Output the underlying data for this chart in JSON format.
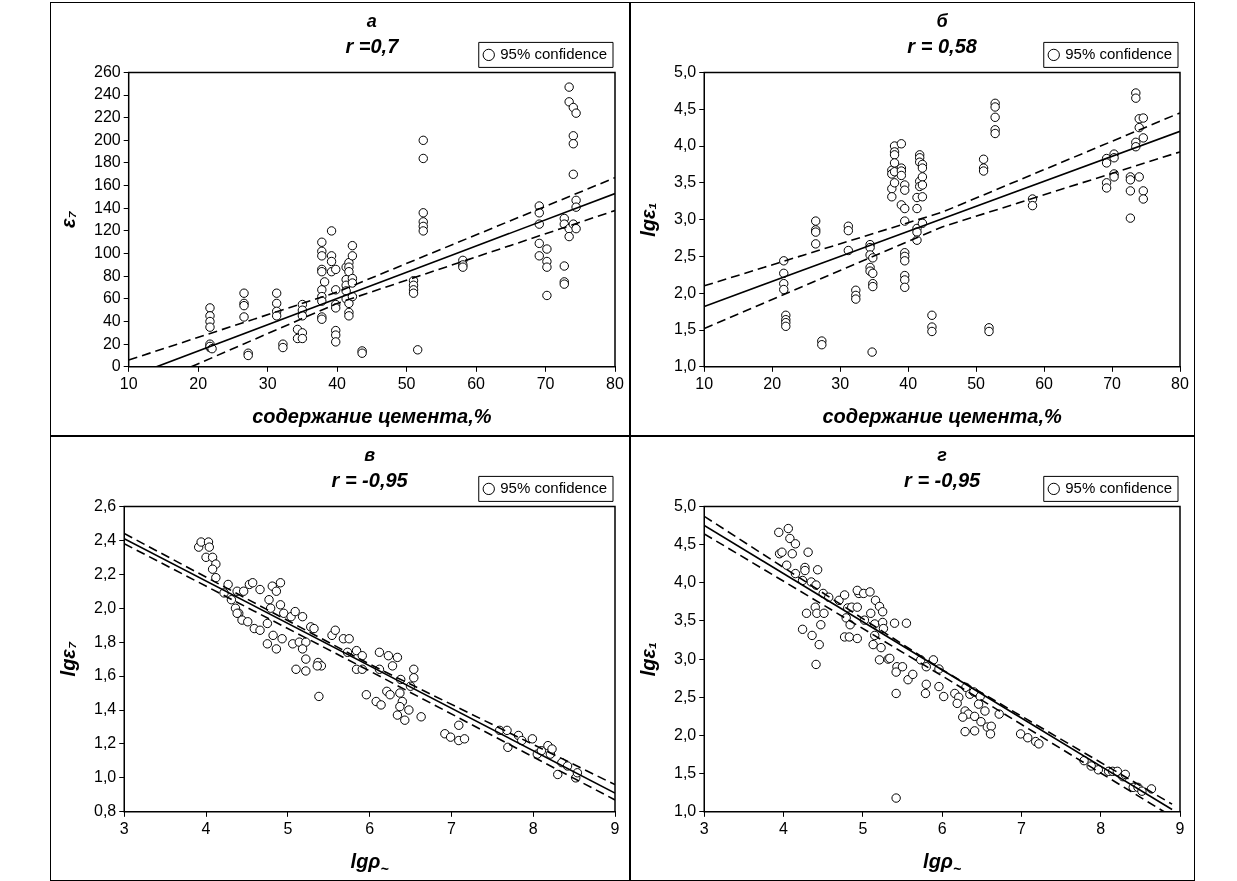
{
  "chart_data": [
    {
      "type": "scatter",
      "title": "а",
      "subtitle": "r =0,7",
      "xlabel": "содержание цемента,%",
      "ylabel": "ε₇",
      "legend": "top right",
      "grid": false,
      "xlim": [
        10,
        80
      ],
      "xticks": [
        10,
        20,
        30,
        40,
        50,
        60,
        70,
        80
      ],
      "ylim": [
        0,
        260
      ],
      "yticks": [
        0,
        20,
        40,
        60,
        80,
        100,
        120,
        140,
        160,
        180,
        200,
        220,
        240,
        260
      ],
      "series": [
        {
          "name": "95% confidence",
          "type": "scatter",
          "marker": "circle",
          "color": "#000000",
          "x": [
            21.7,
            21.7,
            21.7,
            21.7,
            21.7,
            21.7,
            21.7,
            22,
            26.6,
            26.6,
            26.6,
            26.6,
            27.2,
            27.2,
            31.3,
            31.3,
            31.3,
            31.3,
            32.2,
            32.2,
            34.3,
            34.3,
            35,
            35,
            35,
            35,
            35,
            37.8,
            37.8,
            37.8,
            37.8,
            37.8,
            37.8,
            37.8,
            37.8,
            37.8,
            37.8,
            38.2,
            39.2,
            39.2,
            39.2,
            39.2,
            39.8,
            39.8,
            39.8,
            39.8,
            39.8,
            39.8,
            39.8,
            41.3,
            41.3,
            41.3,
            41.3,
            41.3,
            41.7,
            41.7,
            41.7,
            41.7,
            41.7,
            41.7,
            42.2,
            42.2,
            42.2,
            42.2,
            42.2,
            43.6,
            43.6,
            51,
            51,
            51,
            51,
            51.6,
            52.4,
            52.4,
            52.4,
            52.4,
            52.4,
            52.4,
            58.1,
            58.1,
            58.1,
            69.1,
            69.1,
            69.1,
            69.1,
            69.1,
            70.2,
            70.2,
            70.2,
            70.2,
            72.7,
            72.7,
            72.7,
            72.7,
            72.7,
            73.4,
            73.4,
            73.4,
            73.4,
            74,
            74,
            74,
            74,
            74,
            74.4,
            74.4,
            74.4,
            74.4
          ],
          "values": [
            52,
            45,
            40,
            35,
            20,
            17,
            18,
            16,
            65,
            56,
            54,
            44,
            12,
            10,
            65,
            56,
            49,
            45,
            20,
            17,
            33,
            25,
            55,
            50,
            45,
            30,
            25,
            110,
            102,
            98,
            86,
            84,
            68,
            62,
            58,
            44,
            42,
            75,
            120,
            98,
            93,
            84,
            86,
            68,
            55,
            52,
            32,
            28,
            22,
            88,
            77,
            72,
            67,
            60,
            92,
            88,
            84,
            56,
            48,
            45,
            107,
            98,
            78,
            74,
            62,
            14,
            12,
            76,
            72,
            68,
            65,
            15,
            200,
            184,
            136,
            128,
            124,
            120,
            94,
            90,
            88,
            142,
            136,
            126,
            109,
            98,
            104,
            93,
            88,
            63,
            131,
            126,
            89,
            75,
            73,
            247,
            234,
            122,
            115,
            229,
            204,
            197,
            170,
            126,
            224,
            147,
            141,
            122
          ]
        },
        {
          "type": "line",
          "line_style": "solid",
          "color": "#000000",
          "x": [
            14,
            80
          ],
          "values": [
            0,
            153
          ]
        },
        {
          "type": "line",
          "line_style": "dashed",
          "color": "#000000",
          "x": [
            10,
            40,
            80
          ],
          "values": [
            6,
            66,
            167
          ]
        },
        {
          "type": "line",
          "line_style": "dashed",
          "color": "#000000",
          "x": [
            19,
            40,
            80
          ],
          "values": [
            0,
            56,
            138
          ]
        }
      ]
    },
    {
      "type": "scatter",
      "title": "б",
      "subtitle": "r = 0,58",
      "xlabel": "содержание цемента,%",
      "ylabel": "lgε₁",
      "legend": "top right",
      "grid": false,
      "xlim": [
        10,
        80
      ],
      "xticks": [
        10,
        20,
        30,
        40,
        50,
        60,
        70,
        80
      ],
      "ylim": [
        1,
        5
      ],
      "yticks": [
        {
          "value": 1,
          "label": "1,0"
        },
        {
          "value": 1.5,
          "label": "1,5"
        },
        {
          "value": 2,
          "label": "2,0"
        },
        {
          "value": 2.5,
          "label": "2,5"
        },
        {
          "value": 3,
          "label": "3,0"
        },
        {
          "value": 3.5,
          "label": "3,5"
        },
        {
          "value": 4,
          "label": "4,0"
        },
        {
          "value": 4.5,
          "label": "4,5"
        },
        {
          "value": 5,
          "label": "5,0"
        }
      ],
      "series": [
        {
          "name": "95% confidence",
          "type": "scatter",
          "marker": "circle",
          "color": "#000000",
          "x": [
            21.7,
            21.7,
            21.7,
            21.7,
            22,
            22,
            22,
            22,
            26.4,
            26.4,
            26.4,
            26.4,
            27.3,
            27.3,
            31.2,
            31.2,
            31.2,
            32.3,
            32.3,
            32.3,
            34.4,
            34.4,
            34.4,
            34.4,
            34.4,
            34.8,
            34.8,
            34.8,
            34.8,
            34.7,
            37.6,
            37.6,
            37.6,
            37.6,
            38,
            38,
            38,
            38,
            38,
            38,
            39,
            39,
            39,
            39,
            39,
            39.5,
            39.5,
            39.5,
            39.5,
            39.5,
            39.5,
            39.5,
            39.5,
            39.5,
            39.5,
            41.3,
            41.3,
            41.3,
            41.3,
            41.3,
            41.7,
            41.7,
            41.7,
            41.7,
            41.7,
            42.1,
            42.1,
            42.1,
            42.1,
            42.1,
            42.1,
            43.5,
            43.5,
            43.5,
            51.1,
            51.1,
            51.1,
            51.9,
            51.9,
            52.8,
            52.8,
            52.8,
            52.8,
            52.8,
            58.3,
            58.3,
            69.2,
            69.2,
            69.2,
            69.2,
            70.3,
            70.3,
            70.3,
            70.3,
            72.7,
            72.7,
            72.7,
            72.7,
            73.5,
            73.5,
            73.5,
            73.5,
            74,
            74,
            74,
            74.6,
            74.6,
            74.6,
            74.6
          ],
          "values": [
            2.44,
            2.27,
            2.13,
            2.05,
            1.7,
            1.64,
            1.6,
            1.55,
            2.98,
            2.86,
            2.83,
            2.67,
            1.35,
            1.3,
            2.91,
            2.85,
            2.58,
            2.04,
            1.97,
            1.92,
            2.66,
            2.62,
            2.52,
            2.35,
            2.3,
            2.48,
            2.27,
            2.13,
            2.09,
            1.2,
            3.67,
            3.62,
            3.42,
            3.31,
            4,
            3.92,
            3.88,
            3.77,
            3.65,
            3.5,
            4.03,
            3.7,
            3.66,
            3.6,
            3.2,
            3.47,
            3.4,
            3.15,
            2.98,
            2.55,
            2.5,
            2.44,
            2.24,
            2.18,
            2.08,
            3.3,
            3.15,
            2.88,
            2.83,
            2.72,
            3.88,
            3.84,
            3.78,
            3.52,
            3.45,
            3.75,
            3.7,
            3.58,
            3.47,
            3.31,
            2.95,
            1.7,
            1.54,
            1.48,
            3.82,
            3.7,
            3.66,
            1.53,
            1.48,
            4.58,
            4.53,
            4.39,
            4.22,
            4.17,
            3.28,
            3.19,
            3.83,
            3.77,
            3.5,
            3.43,
            3.89,
            3.84,
            3.62,
            3.58,
            3.58,
            3.54,
            3.39,
            3.02,
            4.72,
            4.65,
            4.05,
            3.99,
            4.37,
            4.25,
            3.58,
            4.38,
            4.11,
            3.39,
            3.28
          ]
        },
        {
          "type": "line",
          "line_style": "solid",
          "color": "#000000",
          "x": [
            10,
            80
          ],
          "values": [
            1.82,
            4.2
          ]
        },
        {
          "type": "line",
          "line_style": "dashed",
          "color": "#000000",
          "x": [
            10,
            45,
            80
          ],
          "values": [
            2.1,
            3.1,
            4.45
          ]
        },
        {
          "type": "line",
          "line_style": "dashed",
          "color": "#000000",
          "x": [
            10,
            45,
            80
          ],
          "values": [
            1.52,
            2.9,
            3.92
          ]
        }
      ]
    },
    {
      "type": "scatter",
      "title": "в",
      "subtitle": "r = -0,95",
      "xlabel": "lgρ$_{~}$",
      "ylabel": "lgε₇",
      "legend": "top right",
      "grid": false,
      "xlim": [
        3,
        9
      ],
      "xticks": [
        3,
        4,
        5,
        6,
        7,
        8,
        9
      ],
      "ylim": [
        0.8,
        2.6
      ],
      "yticks": [
        {
          "value": 0.8,
          "label": "0,8"
        },
        {
          "value": 1,
          "label": "1,0"
        },
        {
          "value": 1.2,
          "label": "1,2"
        },
        {
          "value": 1.4,
          "label": "1,4"
        },
        {
          "value": 1.6,
          "label": "1,6"
        },
        {
          "value": 1.8,
          "label": "1,8"
        },
        {
          "value": 2,
          "label": "2,0"
        },
        {
          "value": 2.2,
          "label": "2,2"
        },
        {
          "value": 2.4,
          "label": "2,4"
        },
        {
          "value": 2.6,
          "label": "2,6"
        }
      ],
      "series": [
        {
          "name": "95% confidence",
          "type": "scatter",
          "marker": "circle",
          "color": "#000000",
          "x": [
            3.91,
            3.94,
            4.03,
            4.04,
            4,
            4.08,
            4.12,
            4.08,
            4.12,
            4.27,
            4.22,
            4.38,
            4.46,
            4.53,
            4.57,
            4.66,
            4.81,
            4.91,
            4.86,
            4.31,
            4.36,
            4.4,
            4.38,
            4.44,
            4.51,
            4.59,
            4.66,
            4.77,
            4.79,
            4.91,
            4.75,
            4.82,
            4.75,
            4.86,
            4.93,
            4.95,
            5.04,
            5.09,
            5.18,
            5.06,
            5.14,
            5.22,
            5.18,
            5.1,
            5.22,
            5.22,
            5.28,
            5.32,
            5.37,
            5.41,
            5.36,
            5.38,
            5.54,
            5.58,
            5.68,
            5.75,
            5.73,
            5.84,
            5.91,
            5.84,
            5.91,
            5.96,
            6.12,
            6.12,
            6.23,
            6.34,
            6.28,
            6.08,
            6.14,
            6.21,
            6.25,
            6.38,
            6.37,
            6.4,
            6.37,
            6.34,
            6.43,
            6.48,
            6.54,
            6.54,
            6.63,
            6.5,
            6.92,
            6.99,
            7.09,
            7.09,
            7.16,
            7.59,
            7.68,
            7.69,
            7.82,
            7.86,
            7.99,
            8.05,
            8.1,
            8.18,
            8.21,
            8.23,
            8.3,
            8.35,
            8.42,
            8.52,
            8.54
          ],
          "values": [
            2.36,
            2.39,
            2.39,
            2.36,
            2.3,
            2.3,
            2.26,
            2.23,
            2.18,
            2.14,
            2.09,
            2.1,
            2.1,
            2.14,
            2.15,
            2.11,
            2.13,
            2.15,
            2.1,
            2.05,
            2,
            1.97,
            1.97,
            1.93,
            1.92,
            1.88,
            1.87,
            2.05,
            2,
            2.02,
            1.91,
            1.84,
            1.79,
            1.76,
            1.82,
            1.97,
            1.95,
            1.98,
            1.95,
            1.79,
            1.8,
            1.8,
            1.76,
            1.64,
            1.7,
            1.63,
            1.89,
            1.88,
            1.68,
            1.66,
            1.66,
            1.48,
            1.84,
            1.87,
            1.82,
            1.82,
            1.74,
            1.75,
            1.72,
            1.64,
            1.64,
            1.49,
            1.74,
            1.64,
            1.72,
            1.71,
            1.66,
            1.45,
            1.43,
            1.51,
            1.49,
            1.58,
            1.5,
            1.45,
            1.42,
            1.37,
            1.34,
            1.4,
            1.59,
            1.64,
            1.36,
            1.54,
            1.26,
            1.24,
            1.31,
            1.22,
            1.23,
            1.28,
            1.28,
            1.18,
            1.25,
            1.22,
            1.23,
            1.14,
            1.16,
            1.19,
            1.14,
            1.17,
            1.02,
            1.09,
            1.07,
            1,
            1.03
          ]
        },
        {
          "type": "line",
          "line_style": "solid",
          "color": "#000000",
          "x": [
            3,
            9
          ],
          "values": [
            2.41,
            0.91
          ]
        },
        {
          "type": "line",
          "line_style": "dashed",
          "color": "#000000",
          "x": [
            3,
            6,
            9
          ],
          "values": [
            2.44,
            1.67,
            0.96
          ]
        },
        {
          "type": "line",
          "line_style": "dashed",
          "color": "#000000",
          "x": [
            3,
            6,
            9
          ],
          "values": [
            2.38,
            1.63,
            0.87
          ]
        }
      ]
    },
    {
      "type": "scatter",
      "title": "г",
      "subtitle": "r = -0,95",
      "xlabel": "lgρ$_{~}$",
      "ylabel": "lgε₁",
      "legend": "top right",
      "grid": false,
      "xlim": [
        3,
        9
      ],
      "xticks": [
        3,
        4,
        5,
        6,
        7,
        8,
        9
      ],
      "ylim": [
        1,
        5
      ],
      "yticks": [
        {
          "value": 1,
          "label": "1,0"
        },
        {
          "value": 1.5,
          "label": "1,5"
        },
        {
          "value": 2,
          "label": "2,0"
        },
        {
          "value": 2.5,
          "label": "2,5"
        },
        {
          "value": 3,
          "label": "3,0"
        },
        {
          "value": 3.5,
          "label": "3,5"
        },
        {
          "value": 4,
          "label": "4,0"
        },
        {
          "value": 4.5,
          "label": "4,5"
        },
        {
          "value": 5,
          "label": "5,0"
        }
      ],
      "series": [
        {
          "name": "95% confidence",
          "type": "scatter",
          "marker": "circle",
          "color": "#000000",
          "x": [
            3.94,
            4.06,
            4.08,
            4.15,
            3.95,
            3.98,
            4.11,
            4.04,
            4.15,
            4.31,
            4.27,
            4.27,
            4.43,
            4.24,
            4.35,
            4.41,
            4.29,
            4.24,
            4.36,
            4.45,
            4.47,
            4.41,
            4.4,
            4.42,
            4.51,
            4.5,
            4.57,
            4.7,
            4.77,
            4.81,
            4.86,
            4.93,
            4.95,
            4.93,
            5.01,
            5.09,
            4.79,
            4.84,
            4.77,
            4.83,
            4.93,
            5.02,
            5.1,
            5.16,
            5.21,
            5.25,
            5.15,
            5.25,
            5.26,
            5.15,
            5.13,
            5.21,
            5.23,
            5.4,
            5.55,
            5.32,
            5.34,
            5.43,
            5.42,
            5.5,
            5.57,
            5.63,
            5.42,
            5.42,
            5.73,
            5.8,
            5.89,
            5.96,
            5.8,
            5.79,
            5.96,
            6.02,
            6.16,
            6.21,
            6.19,
            6.3,
            6.35,
            6.4,
            6.29,
            6.33,
            6.26,
            6.41,
            6.29,
            6.41,
            6.48,
            6.46,
            6.54,
            6.49,
            6.57,
            6.62,
            6.61,
            6.72,
            6.99,
            7.08,
            7.18,
            7.22,
            7.79,
            7.88,
            7.97,
            8.1,
            8.15,
            8.21,
            8.28,
            8.31,
            8.41,
            8.47,
            8.52,
            8.64
          ],
          "values": [
            4.66,
            4.71,
            4.58,
            4.51,
            4.38,
            4.4,
            4.38,
            4.23,
            4.12,
            4.4,
            4.2,
            4.16,
            4.17,
            4.03,
            4.01,
            3.97,
            3.6,
            3.39,
            3.31,
            3.19,
            3.45,
            2.93,
            3.68,
            3.6,
            3.6,
            3.86,
            3.81,
            3.77,
            3.84,
            3.67,
            3.68,
            3.68,
            3.86,
            3.9,
            3.86,
            3.88,
            3.54,
            3.45,
            3.29,
            3.29,
            3.27,
            3.51,
            3.6,
            3.77,
            3.69,
            3.62,
            3.46,
            3.48,
            3.4,
            3.31,
            3.19,
            2.99,
            3.15,
            3.47,
            3.47,
            3,
            3.01,
            2.9,
            2.83,
            2.9,
            2.73,
            2.8,
            2.55,
            1.18,
            2.99,
            2.9,
            2.99,
            2.87,
            2.67,
            2.55,
            2.64,
            2.51,
            2.55,
            2.5,
            2.42,
            2.63,
            2.54,
            2.57,
            2.32,
            2.28,
            2.24,
            2.25,
            2.05,
            2.06,
            2.51,
            2.41,
            2.32,
            2.18,
            2.11,
            2.12,
            2.02,
            2.28,
            2.02,
            1.97,
            1.92,
            1.89,
            1.67,
            1.6,
            1.55,
            1.53,
            1.53,
            1.53,
            1.46,
            1.49,
            1.32,
            1.32,
            1.27,
            1.3
          ]
        },
        {
          "type": "line",
          "line_style": "solid",
          "color": "#000000",
          "x": [
            3,
            8.9
          ],
          "values": [
            4.75,
            1.03
          ]
        },
        {
          "type": "line",
          "line_style": "dashed",
          "color": "#000000",
          "x": [
            3,
            6,
            8.9
          ],
          "values": [
            4.87,
            2.86,
            1.1
          ]
        },
        {
          "type": "line",
          "line_style": "dashed",
          "color": "#000000",
          "x": [
            3,
            6,
            8.8
          ],
          "values": [
            4.64,
            2.78,
            1
          ]
        }
      ]
    }
  ]
}
